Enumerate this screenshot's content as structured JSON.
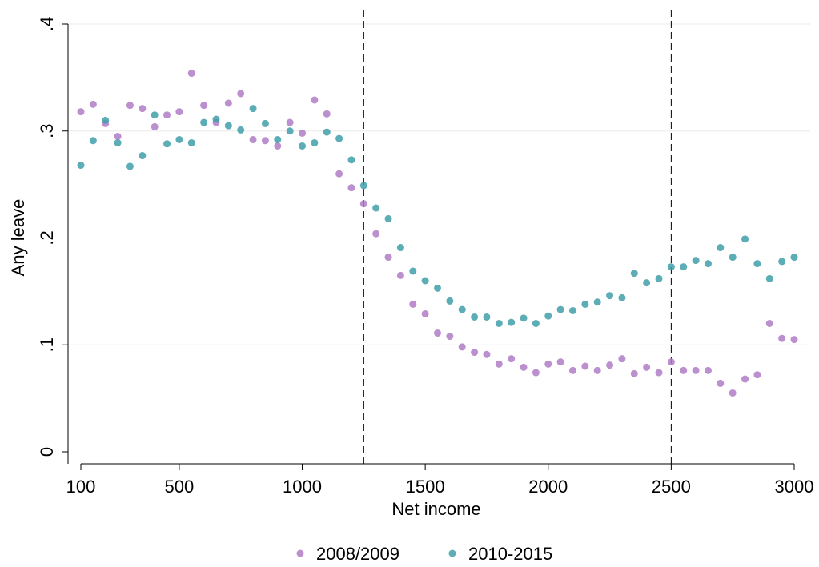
{
  "chart_data": {
    "type": "scatter",
    "x_label": "Net income",
    "y_label": "Any leave",
    "x": [
      100,
      150,
      200,
      250,
      300,
      350,
      400,
      450,
      500,
      550,
      600,
      650,
      700,
      750,
      800,
      850,
      900,
      950,
      1000,
      1050,
      1100,
      1150,
      1200,
      1250,
      1300,
      1350,
      1400,
      1450,
      1500,
      1550,
      1600,
      1650,
      1700,
      1750,
      1800,
      1850,
      1900,
      1950,
      2000,
      2050,
      2100,
      2150,
      2200,
      2250,
      2300,
      2350,
      2400,
      2450,
      2500,
      2550,
      2600,
      2650,
      2700,
      2750,
      2800,
      2850,
      2900,
      2950,
      3000
    ],
    "series": [
      {
        "name": "2008/2009",
        "color": "#b07cc6",
        "values": [
          0.318,
          0.325,
          0.307,
          0.295,
          0.324,
          0.321,
          0.304,
          0.315,
          0.318,
          0.354,
          0.324,
          0.308,
          0.326,
          0.335,
          0.292,
          0.291,
          0.286,
          0.308,
          0.298,
          0.329,
          0.316,
          0.26,
          0.247,
          0.232,
          0.204,
          0.182,
          0.165,
          0.138,
          0.129,
          0.111,
          0.108,
          0.098,
          0.093,
          0.091,
          0.082,
          0.087,
          0.079,
          0.074,
          0.082,
          0.084,
          0.076,
          0.08,
          0.076,
          0.081,
          0.087,
          0.073,
          0.079,
          0.074,
          0.084,
          0.076,
          0.076,
          0.076,
          0.064,
          0.055,
          0.068,
          0.072,
          0.12,
          0.106,
          0.105
        ]
      },
      {
        "name": "2010-2015",
        "color": "#3f9fa9",
        "values": [
          0.268,
          0.291,
          0.31,
          0.289,
          0.267,
          0.277,
          0.315,
          0.288,
          0.292,
          0.289,
          0.308,
          0.311,
          0.305,
          0.301,
          0.321,
          0.307,
          0.292,
          0.3,
          0.286,
          0.289,
          0.299,
          0.293,
          0.273,
          0.249,
          0.228,
          0.218,
          0.191,
          0.169,
          0.16,
          0.153,
          0.141,
          0.133,
          0.126,
          0.126,
          0.12,
          0.121,
          0.125,
          0.12,
          0.127,
          0.133,
          0.132,
          0.138,
          0.14,
          0.146,
          0.144,
          0.167,
          0.158,
          0.162,
          0.173,
          0.173,
          0.179,
          0.176,
          0.191,
          0.182,
          0.199,
          0.176,
          0.162,
          0.178,
          0.182
        ]
      }
    ],
    "xlim": [
      100,
      3000
    ],
    "xticks": [
      100,
      500,
      1000,
      1500,
      2000,
      2500,
      3000
    ],
    "ylim": [
      0,
      0.4
    ],
    "yticks": [
      0,
      {
        "value": 0.1,
        "label": ".1"
      },
      {
        "value": 0.2,
        "label": ".2"
      },
      {
        "value": 0.3,
        "label": ".3"
      },
      {
        "value": 0.4,
        "label": ".4"
      }
    ],
    "vlines": [
      1250,
      2500
    ],
    "grid": true,
    "legend": "bottom"
  }
}
